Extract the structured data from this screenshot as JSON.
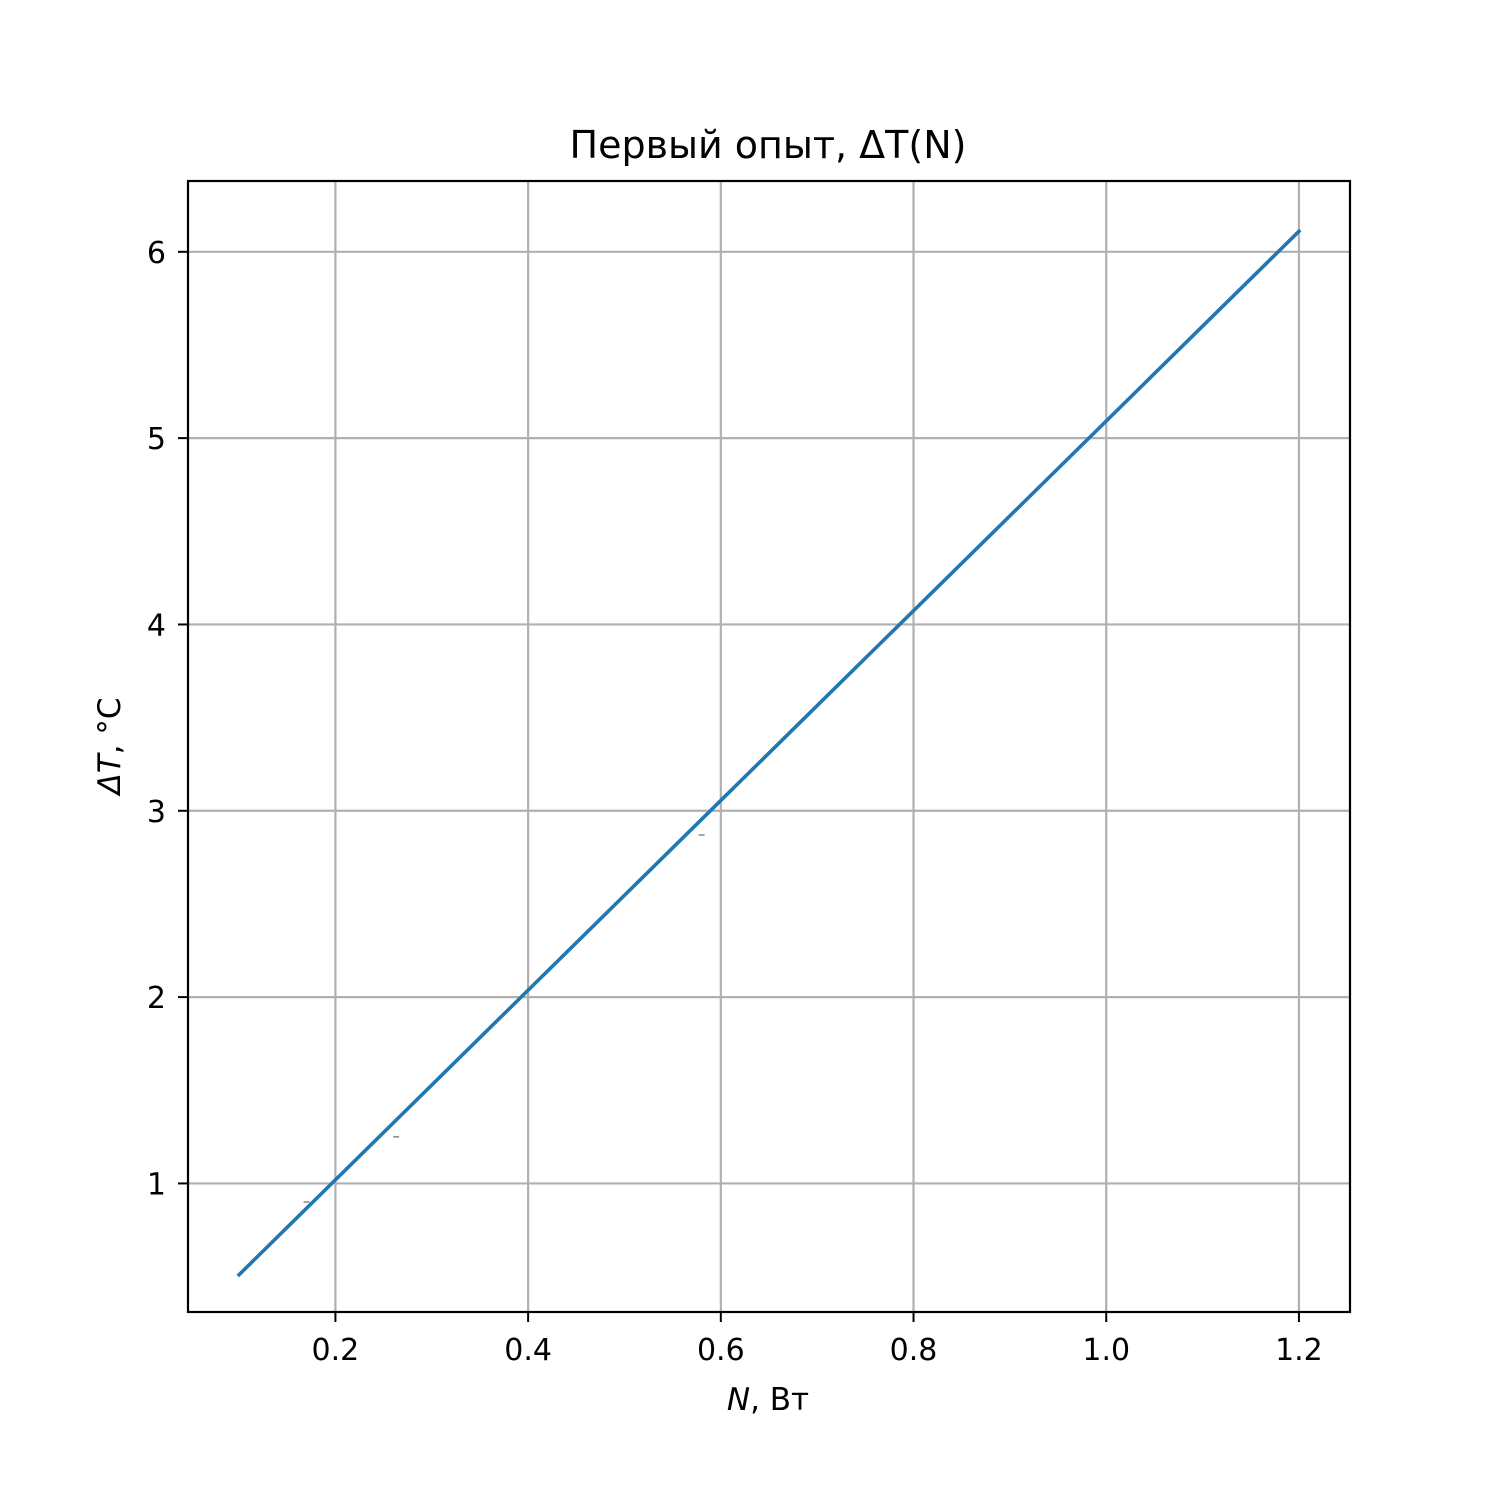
{
  "chart_data": {
    "type": "line",
    "title": "Первый опыт, ΔT(N)",
    "xlabel_italic": "N",
    "xlabel_rest": ", Вт",
    "ylabel_italic": "ΔT",
    "ylabel_rest": ", °C",
    "xlim": [
      0.047,
      1.253
    ],
    "ylim": [
      0.31,
      6.38
    ],
    "x_ticks": [
      0.2,
      0.4,
      0.6,
      0.8,
      1.0,
      1.2
    ],
    "x_tick_labels": [
      "0.2",
      "0.4",
      "0.6",
      "0.8",
      "1.0",
      "1.2"
    ],
    "y_ticks": [
      1,
      2,
      3,
      4,
      5,
      6
    ],
    "y_tick_labels": [
      "1",
      "2",
      "3",
      "4",
      "5",
      "6"
    ],
    "grid": true,
    "series": [
      {
        "color": "#1f77b4",
        "x": [
          0.1,
          1.2
        ],
        "y": [
          0.51,
          6.11
        ]
      }
    ],
    "error_marks": [
      {
        "x": 0.17,
        "y": 0.9
      },
      {
        "x": 0.263,
        "y": 1.25
      },
      {
        "x": 0.58,
        "y": 2.87
      }
    ]
  }
}
